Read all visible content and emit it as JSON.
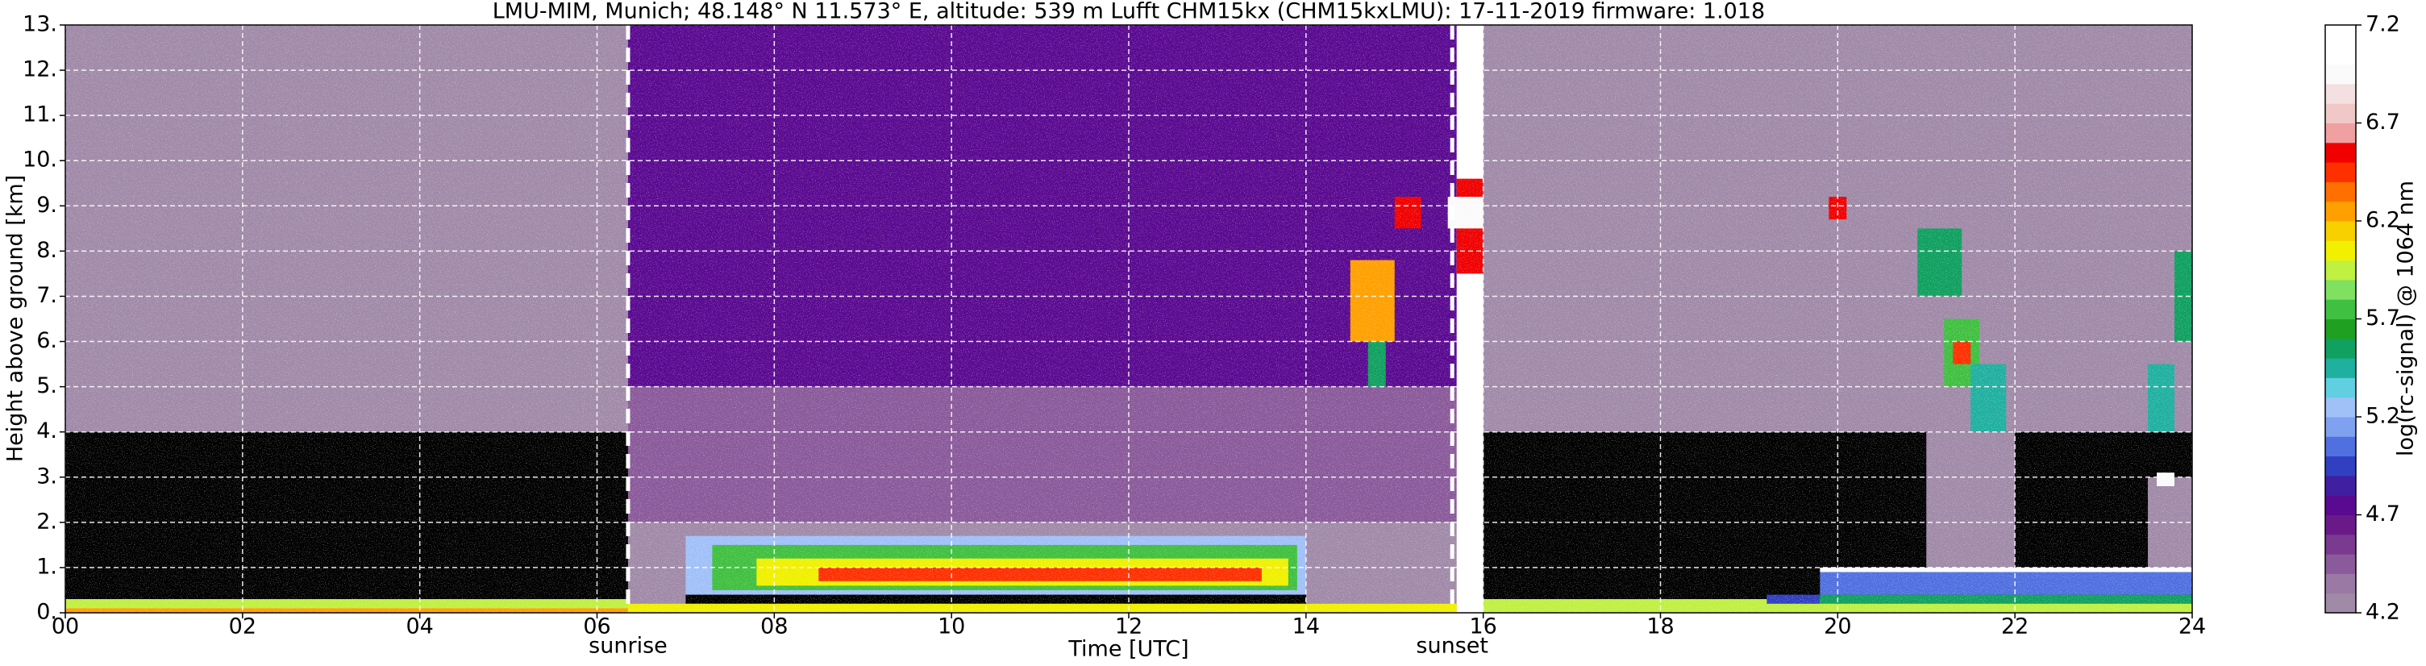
{
  "chart_data": {
    "type": "heatmap",
    "title": "LMU-MIM, Munich; 48.148° N 11.573° E, altitude: 539 m    Lufft CHM15kx (CHM15kxLMU): 17-11-2019    firmware: 1.018",
    "x_label": "Time [UTC]",
    "y_label": "Height above ground [km]",
    "colorbar_label": "log(rc-signal) @ 1064 nm",
    "xlim": [
      0,
      24
    ],
    "ylim": [
      0,
      13
    ],
    "xticks": [
      {
        "value": 0,
        "label": "00"
      },
      {
        "value": 2,
        "label": "02"
      },
      {
        "value": 4,
        "label": "04"
      },
      {
        "value": 6,
        "label": "06"
      },
      {
        "value": 8,
        "label": "08"
      },
      {
        "value": 10,
        "label": "10"
      },
      {
        "value": 12,
        "label": "12"
      },
      {
        "value": 14,
        "label": "14"
      },
      {
        "value": 16,
        "label": "16"
      },
      {
        "value": 18,
        "label": "18"
      },
      {
        "value": 20,
        "label": "20"
      },
      {
        "value": 22,
        "label": "22"
      },
      {
        "value": 24,
        "label": "24"
      }
    ],
    "yticks": [
      {
        "value": 0,
        "label": "0."
      },
      {
        "value": 1,
        "label": "1."
      },
      {
        "value": 2,
        "label": "2."
      },
      {
        "value": 3,
        "label": "3."
      },
      {
        "value": 4,
        "label": "4."
      },
      {
        "value": 5,
        "label": "5."
      },
      {
        "value": 6,
        "label": "6."
      },
      {
        "value": 7,
        "label": "7."
      },
      {
        "value": 8,
        "label": "8."
      },
      {
        "value": 9,
        "label": "9."
      },
      {
        "value": 10,
        "label": "10."
      },
      {
        "value": 11,
        "label": "11."
      },
      {
        "value": 12,
        "label": "12."
      },
      {
        "value": 13,
        "label": "13."
      }
    ],
    "grid": true,
    "zlim": [
      4.2,
      7.2
    ],
    "zticks": [
      4.2,
      4.7,
      5.2,
      5.7,
      6.2,
      6.7,
      7.2
    ],
    "under_color": "#000000",
    "colormap": [
      "#a08aa8",
      "#9a7aa5",
      "#8a5a9a",
      "#7a3a90",
      "#6a1a88",
      "#5a0a90",
      "#4020a0",
      "#3040c0",
      "#5070e0",
      "#80a0f0",
      "#a0c0f8",
      "#60d0e0",
      "#20b0a0",
      "#10a060",
      "#20a020",
      "#40c040",
      "#80e060",
      "#c0f040",
      "#f0f000",
      "#f8d000",
      "#ffa000",
      "#ff7000",
      "#ff3000",
      "#f00000",
      "#f0a0a0",
      "#f0c8c8",
      "#f4e0e0",
      "#fafafa",
      "#ffffff",
      "#ffffff"
    ],
    "annotations": [
      {
        "text": "sunrise",
        "x": 6.35
      },
      {
        "text": "sunset",
        "x": 15.65
      }
    ],
    "cells": [
      {
        "t": [
          0,
          6.35
        ],
        "h": [
          4,
          13
        ],
        "value": 4.25
      },
      {
        "t": [
          0,
          6.35
        ],
        "h": [
          0.3,
          4
        ],
        "value": 4.0
      },
      {
        "t": [
          0,
          6.35
        ],
        "h": [
          0.1,
          0.3
        ],
        "value": 5.9
      },
      {
        "t": [
          0,
          6.35
        ],
        "h": [
          0,
          0.1
        ],
        "value": 6.3
      },
      {
        "t": [
          6.35,
          15.7
        ],
        "h": [
          5,
          13
        ],
        "value": 4.7
      },
      {
        "t": [
          6.35,
          15.7
        ],
        "h": [
          2,
          5
        ],
        "value": 4.5
      },
      {
        "t": [
          6.35,
          15.7
        ],
        "h": [
          0,
          2
        ],
        "value": 4.3
      },
      {
        "t": [
          7,
          14
        ],
        "h": [
          0.4,
          1.7
        ],
        "value": 5.3
      },
      {
        "t": [
          7.3,
          13.9
        ],
        "h": [
          0.5,
          1.5
        ],
        "value": 5.7
      },
      {
        "t": [
          7.8,
          13.8
        ],
        "h": [
          0.6,
          1.2
        ],
        "value": 6.1
      },
      {
        "t": [
          8.5,
          13.5
        ],
        "h": [
          0.7,
          1.0
        ],
        "value": 6.4
      },
      {
        "t": [
          7,
          14
        ],
        "h": [
          0.2,
          0.4
        ],
        "value": 4.0
      },
      {
        "t": [
          6.35,
          15.7
        ],
        "h": [
          0,
          0.2
        ],
        "value": 6.0
      },
      {
        "t": [
          14.5,
          15.0
        ],
        "h": [
          6.0,
          7.8
        ],
        "value": 6.3
      },
      {
        "t": [
          14.7,
          14.9
        ],
        "h": [
          5.0,
          6.0
        ],
        "value": 5.6
      },
      {
        "t": [
          15.0,
          15.3
        ],
        "h": [
          8.5,
          9.2
        ],
        "value": 6.6
      },
      {
        "t": [
          15.7,
          16.0
        ],
        "h": [
          7.5,
          9.6
        ],
        "value": 6.5
      },
      {
        "t": [
          15.6,
          16.0
        ],
        "h": [
          8.5,
          9.2
        ],
        "value": 6.9
      },
      {
        "t": [
          16,
          24
        ],
        "h": [
          4,
          13
        ],
        "value": 4.25
      },
      {
        "t": [
          16,
          24
        ],
        "h": [
          0.3,
          4
        ],
        "value": 4.0
      },
      {
        "t": [
          16,
          24
        ],
        "h": [
          0,
          0.3
        ],
        "value": 5.9
      },
      {
        "t": [
          21,
          22
        ],
        "h": [
          1,
          4
        ],
        "value": 4.3
      },
      {
        "t": [
          23.5,
          24
        ],
        "h": [
          1,
          3
        ],
        "value": 4.3
      },
      {
        "t": [
          19.2,
          19.8
        ],
        "h": [
          0.2,
          0.4
        ],
        "value": 5.0
      },
      {
        "t": [
          19.8,
          24
        ],
        "h": [
          0.4,
          1.0
        ],
        "value": 5.1
      },
      {
        "t": [
          19.8,
          24
        ],
        "h": [
          0.2,
          0.4
        ],
        "value": 5.6
      },
      {
        "t": [
          19.8,
          24
        ],
        "h": [
          0.9,
          1.0
        ],
        "value": 6.9
      },
      {
        "t": [
          19.9,
          20.1
        ],
        "h": [
          8.7,
          9.2
        ],
        "value": 6.6
      },
      {
        "t": [
          20.9,
          21.4
        ],
        "h": [
          7.0,
          8.5
        ],
        "value": 5.6
      },
      {
        "t": [
          21.2,
          21.6
        ],
        "h": [
          5.0,
          6.5
        ],
        "value": 5.8
      },
      {
        "t": [
          21.3,
          21.5
        ],
        "h": [
          5.5,
          6.0
        ],
        "value": 6.4
      },
      {
        "t": [
          21.5,
          21.9
        ],
        "h": [
          4.0,
          5.5
        ],
        "value": 5.4
      },
      {
        "t": [
          23.5,
          23.8
        ],
        "h": [
          4.0,
          5.5
        ],
        "value": 5.4
      },
      {
        "t": [
          23.8,
          24
        ],
        "h": [
          6.0,
          8.0
        ],
        "value": 5.6
      },
      {
        "t": [
          23.6,
          23.8
        ],
        "h": [
          2.8,
          3.1
        ],
        "value": 6.9
      }
    ]
  }
}
